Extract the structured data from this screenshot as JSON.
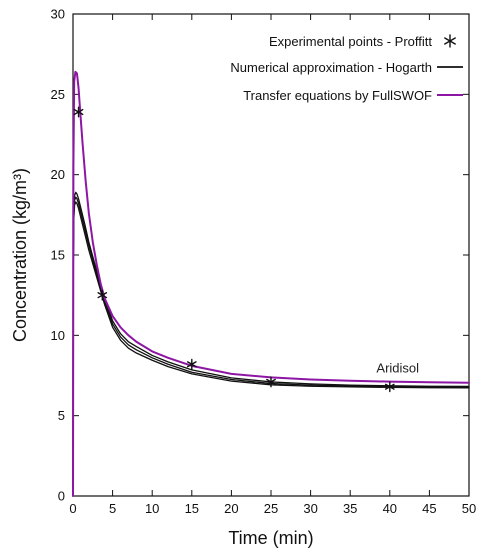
{
  "chart_data": {
    "type": "line",
    "title": "",
    "xlabel": "Time (min)",
    "ylabel": "Concentration (kg/m³)",
    "xlim": [
      0,
      50
    ],
    "ylim": [
      0,
      30
    ],
    "xticks": [
      "0",
      "5",
      "10",
      "15",
      "20",
      "25",
      "30",
      "35",
      "40",
      "45",
      "50"
    ],
    "yticks": [
      "0",
      "5",
      "10",
      "15",
      "20",
      "25",
      "30"
    ],
    "grid": false,
    "legend_position": "top-right",
    "legend": [
      {
        "label": "Experimental points - Proffitt",
        "marker": "asterisk",
        "color": "#111111"
      },
      {
        "label": "Numerical approximation - Hogarth",
        "marker": "line",
        "color": "#111111"
      },
      {
        "label": "Transfer equations by FullSWOF",
        "marker": "line",
        "color": "#8e16a5"
      }
    ],
    "annotations": [
      {
        "text": "Aridisol",
        "x": 41,
        "y": 7.7
      }
    ],
    "series": [
      {
        "name": "Experimental points - Proffitt",
        "kind": "scatter",
        "color": "#111111",
        "x": [
          0.7,
          3.7,
          15,
          25,
          40
        ],
        "y": [
          23.9,
          12.5,
          8.2,
          7.1,
          6.8
        ]
      },
      {
        "name": "Numerical approximation - Hogarth",
        "kind": "line",
        "color": "#111111",
        "x": [
          0,
          0.02,
          0.1,
          0.2,
          0.35,
          0.5,
          0.7,
          1,
          1.5,
          2,
          3,
          4,
          5,
          6,
          7,
          8,
          10,
          12,
          15,
          20,
          25,
          30,
          35,
          40,
          45,
          50
        ],
        "y": [
          0,
          13.5,
          17.4,
          18.4,
          18.6,
          18.5,
          18.2,
          17.6,
          16.6,
          15.6,
          13.8,
          12.1,
          10.7,
          9.9,
          9.4,
          9.1,
          8.6,
          8.2,
          7.7,
          7.25,
          7.0,
          6.9,
          6.85,
          6.8,
          6.78,
          6.77
        ]
      },
      {
        "name": "Numerical approximation - Hogarth (upper band)",
        "kind": "line",
        "color": "#111111",
        "x": [
          0,
          0.02,
          0.1,
          0.2,
          0.35,
          0.5,
          0.7,
          1,
          1.5,
          2,
          3,
          4,
          5,
          6,
          7,
          8,
          10,
          12,
          15,
          20,
          25,
          30,
          35,
          40,
          45,
          50
        ],
        "y": [
          0,
          13.6,
          17.6,
          18.7,
          18.9,
          18.8,
          18.5,
          17.9,
          16.9,
          15.8,
          14.0,
          12.3,
          10.9,
          10.1,
          9.6,
          9.3,
          8.75,
          8.35,
          7.85,
          7.35,
          7.1,
          6.98,
          6.9,
          6.86,
          6.83,
          6.82
        ]
      },
      {
        "name": "Numerical approximation - Hogarth (lower band)",
        "kind": "line",
        "color": "#111111",
        "x": [
          0,
          0.02,
          0.1,
          0.2,
          0.35,
          0.5,
          0.7,
          1,
          1.5,
          2,
          3,
          4,
          5,
          6,
          7,
          8,
          10,
          12,
          15,
          20,
          25,
          30,
          35,
          40,
          45,
          50
        ],
        "y": [
          0,
          13.3,
          17.2,
          18.1,
          18.3,
          18.2,
          17.9,
          17.3,
          16.3,
          15.3,
          13.6,
          11.9,
          10.5,
          9.7,
          9.2,
          8.9,
          8.45,
          8.05,
          7.6,
          7.15,
          6.92,
          6.83,
          6.79,
          6.76,
          6.74,
          6.73
        ]
      },
      {
        "name": "Transfer equations by FullSWOF",
        "kind": "line",
        "color": "#8e16a5",
        "x": [
          0,
          0.05,
          0.15,
          0.3,
          0.5,
          0.7,
          0.9,
          1.2,
          1.6,
          2,
          2.5,
          3,
          3.5,
          4,
          5,
          6,
          7,
          8,
          10,
          12,
          15,
          20,
          25,
          30,
          35,
          40,
          45,
          50
        ],
        "y": [
          0,
          20.5,
          25.8,
          26.4,
          26.3,
          25.4,
          24.0,
          22.0,
          19.6,
          17.6,
          15.8,
          14.4,
          13.2,
          12.3,
          11.2,
          10.5,
          10.0,
          9.6,
          9.0,
          8.6,
          8.1,
          7.6,
          7.38,
          7.25,
          7.17,
          7.12,
          7.08,
          7.05
        ]
      }
    ]
  }
}
